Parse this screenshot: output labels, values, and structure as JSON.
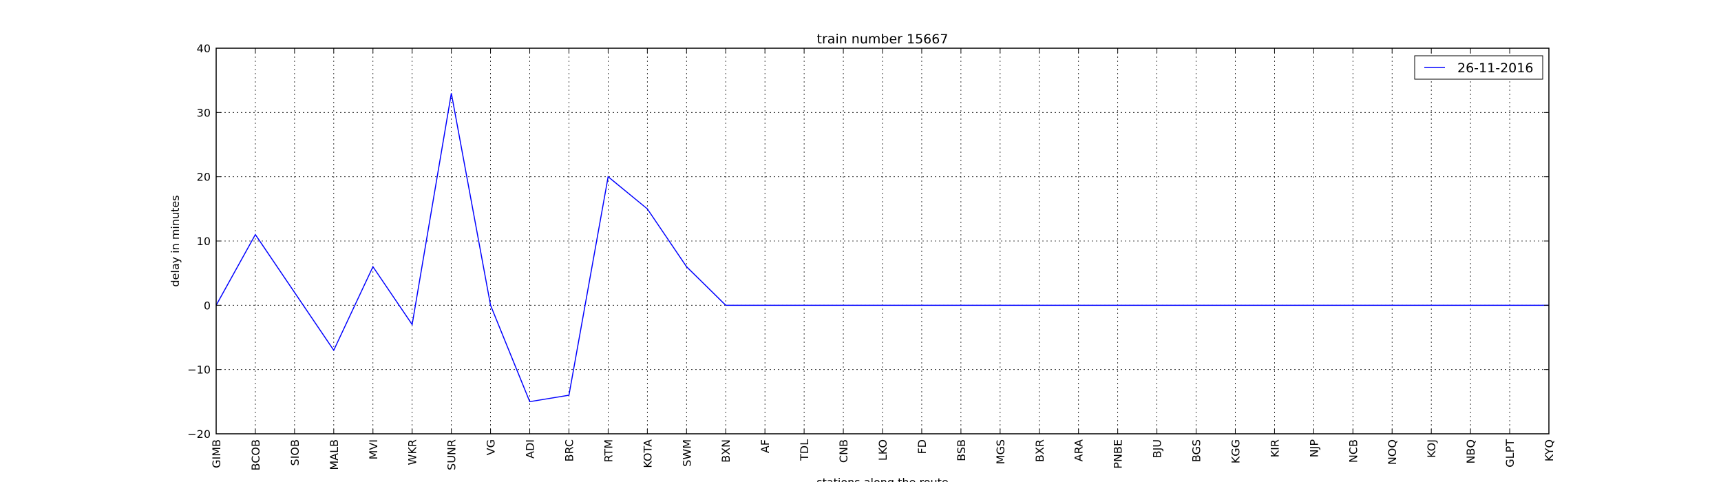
{
  "chart_data": {
    "type": "line",
    "title": "train number 15667",
    "xlabel": "stations along the route",
    "ylabel": "delay in minutes",
    "ylim": [
      -20,
      40
    ],
    "yticks": [
      -20,
      -10,
      0,
      10,
      20,
      30,
      40
    ],
    "ytick_labels": [
      "−20",
      "−10",
      "0",
      "10",
      "20",
      "30",
      "40"
    ],
    "grid": true,
    "legend_position": "top-right",
    "categories": [
      "GIMB",
      "BCOB",
      "SIOB",
      "MALB",
      "MVI",
      "WKR",
      "SUNR",
      "VG",
      "ADI",
      "BRC",
      "RTM",
      "KOTA",
      "SWM",
      "BXN",
      "AF",
      "TDL",
      "CNB",
      "LKO",
      "FD",
      "BSB",
      "MGS",
      "BXR",
      "ARA",
      "PNBE",
      "BJU",
      "BGS",
      "KGG",
      "KIR",
      "NJP",
      "NCB",
      "NOQ",
      "KOJ",
      "NBQ",
      "GLPT",
      "KYQ"
    ],
    "series": [
      {
        "name": "26-11-2016",
        "color": "#0000ff",
        "values": [
          0,
          11,
          2,
          -7,
          6,
          -3,
          33,
          0,
          -15,
          -14,
          20,
          15,
          6,
          0,
          0,
          0,
          0,
          0,
          0,
          0,
          0,
          0,
          0,
          0,
          0,
          0,
          0,
          0,
          0,
          0,
          0,
          0,
          0,
          0,
          0
        ]
      }
    ]
  }
}
